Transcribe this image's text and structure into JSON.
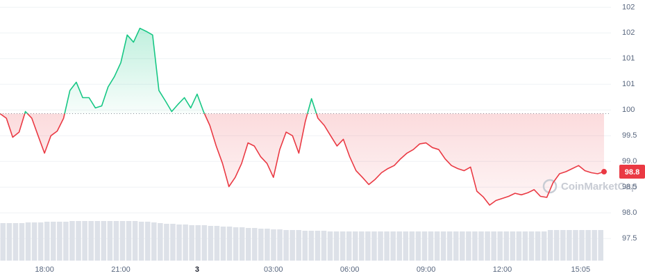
{
  "chart_data": {
    "type": "line",
    "watermark": "CoinMarketCap",
    "baseline": 99.93,
    "x": [
      16.25,
      16.5,
      16.75,
      17,
      17.25,
      17.5,
      17.75,
      18,
      18.25,
      18.5,
      18.75,
      19,
      19.25,
      19.5,
      19.75,
      20,
      20.25,
      20.5,
      20.75,
      21,
      21.25,
      21.5,
      21.75,
      22,
      22.25,
      22.5,
      22.75,
      23,
      23.25,
      23.5,
      23.75,
      24,
      24.25,
      24.5,
      24.75,
      25,
      25.25,
      25.5,
      25.75,
      26,
      26.25,
      26.5,
      26.75,
      27,
      27.25,
      27.5,
      27.75,
      28,
      28.25,
      28.5,
      28.75,
      29,
      29.25,
      29.5,
      29.75,
      30,
      30.25,
      30.5,
      30.75,
      31,
      31.25,
      31.5,
      31.75,
      32,
      32.25,
      32.5,
      32.75,
      33,
      33.25,
      33.5,
      33.75,
      34,
      34.25,
      34.5,
      34.75,
      35,
      35.25,
      35.5,
      35.75,
      36,
      36.25,
      36.5,
      36.75,
      37,
      37.25,
      37.5,
      37.75,
      38,
      38.25,
      38.5,
      38.75,
      39,
      39.25,
      39.5,
      39.75,
      40
    ],
    "series": [
      {
        "name": "Price",
        "color_up": "#16c784",
        "color_down": "#ea3943",
        "values": [
          99.93,
          99.84,
          99.47,
          99.57,
          99.97,
          99.84,
          99.5,
          99.16,
          99.5,
          99.59,
          99.84,
          100.38,
          100.54,
          100.24,
          100.24,
          100.04,
          100.08,
          100.45,
          100.65,
          100.92,
          101.46,
          101.32,
          101.59,
          101.53,
          101.46,
          100.38,
          100.18,
          99.97,
          100.11,
          100.24,
          100.04,
          100.31,
          99.97,
          99.7,
          99.3,
          98.96,
          98.51,
          98.69,
          98.96,
          99.36,
          99.3,
          99.09,
          98.96,
          98.69,
          99.23,
          99.57,
          99.5,
          99.16,
          99.77,
          100.22,
          99.84,
          99.7,
          99.5,
          99.3,
          99.43,
          99.09,
          98.82,
          98.69,
          98.55,
          98.65,
          98.78,
          98.86,
          98.92,
          99.05,
          99.16,
          99.23,
          99.34,
          99.36,
          99.27,
          99.23,
          99.05,
          98.92,
          98.86,
          98.82,
          98.89,
          98.42,
          98.31,
          98.15,
          98.24,
          98.28,
          98.32,
          98.38,
          98.35,
          98.39,
          98.45,
          98.32,
          98.3,
          98.59,
          98.76,
          98.8,
          98.86,
          98.92,
          98.82,
          98.78,
          98.76,
          98.8
        ]
      },
      {
        "name": "Volume",
        "color": "#dde1e8",
        "values": [
          54,
          54,
          54,
          54,
          55,
          55,
          55,
          56,
          56,
          56,
          56,
          57,
          57,
          57,
          57,
          57,
          57,
          57,
          57,
          57,
          57,
          57,
          56,
          56,
          55,
          54,
          53,
          53,
          52,
          52,
          51,
          51,
          51,
          50,
          50,
          49,
          49,
          48,
          48,
          47,
          47,
          46,
          46,
          45,
          45,
          44,
          44,
          44,
          43,
          43,
          43,
          43,
          42,
          42,
          42,
          42,
          42,
          42,
          42,
          42,
          42,
          42,
          42,
          42,
          42,
          42,
          42,
          42,
          42,
          42,
          42,
          42,
          42,
          42,
          42,
          42,
          42,
          42,
          42,
          42,
          42,
          42,
          42,
          42,
          42,
          42,
          42,
          44,
          44,
          44,
          44,
          44,
          44,
          44,
          44,
          44
        ]
      }
    ],
    "xlim": [
      16.25,
      40.0
    ],
    "ylim": [
      97.07,
      102.14
    ],
    "xticks": [
      {
        "value": 18,
        "label": "18:00"
      },
      {
        "value": 21,
        "label": "21:00"
      },
      {
        "value": 24,
        "label": "3"
      },
      {
        "value": 27,
        "label": "03:00"
      },
      {
        "value": 30,
        "label": "06:00"
      },
      {
        "value": 33,
        "label": "09:00"
      },
      {
        "value": 36,
        "label": "12:00"
      },
      {
        "value": 39.08,
        "label": "15:05"
      }
    ],
    "yticks": [
      102,
      {
        "value": 101.5,
        "label": "102"
      },
      101,
      {
        "value": 100.5,
        "label": "101"
      },
      100,
      99.5,
      {
        "value": 99,
        "label": "99.0"
      },
      98.5,
      {
        "value": 98,
        "label": "98.0"
      },
      97.5
    ],
    "grid": true
  }
}
